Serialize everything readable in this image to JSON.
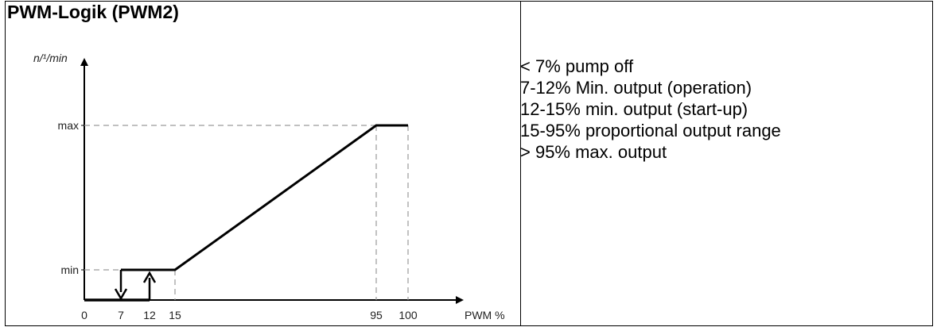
{
  "title": "PWM-Logik (PWM2)",
  "chart_data": {
    "type": "line",
    "ylabel": "n/¹/min",
    "xlabel": "PWM %",
    "x_ticks": [
      "0",
      "7",
      "12",
      "15",
      "95",
      "100"
    ],
    "y_ticks": [
      "min",
      "max"
    ],
    "series": [
      {
        "points": [
          {
            "x": 0,
            "y": "0"
          },
          {
            "x": 15,
            "y": "0"
          },
          {
            "x": 15,
            "y": "min"
          },
          {
            "x": 95,
            "y": "max"
          },
          {
            "x": 100,
            "y": "max"
          }
        ]
      }
    ],
    "annotations": [
      {
        "type": "arrow-down",
        "x": 7
      },
      {
        "type": "arrow-up",
        "x": 12
      }
    ],
    "guides": "dashed",
    "grid": false
  },
  "description": [
    "< 7% pump off",
    "7-12% Min. output (operation)",
    "12-15% min. output (start-up)",
    "15-95% proportional output range",
    "> 95% max. output"
  ]
}
